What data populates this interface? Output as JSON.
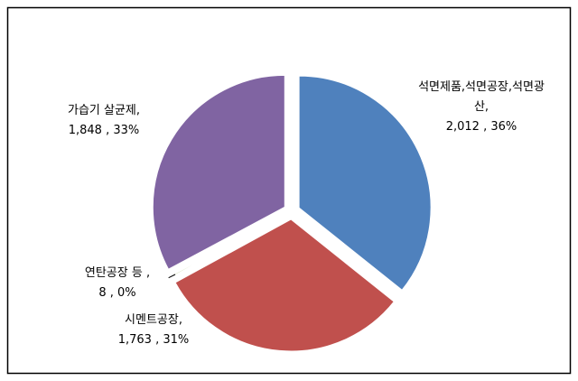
{
  "chart_data": {
    "type": "pie",
    "categories": [
      "석면제품,석면공장,석면광산,",
      "시멘트공장,",
      "연탄공장 등 ,",
      "가습기 살균제,"
    ],
    "values": [
      2012,
      1763,
      8,
      1848
    ],
    "value_labels": [
      "2,012 , 36%",
      "1,763 , 31%",
      "8 , 0%",
      "1,848 , 33%"
    ],
    "colors": [
      "#4f81bd",
      "#c0504d",
      "#9bbb59",
      "#8064a2"
    ],
    "start_angle": -90,
    "exploded": true
  }
}
